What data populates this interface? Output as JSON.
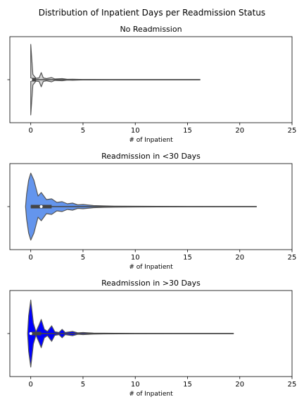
{
  "suptitle": "Distribution of Inpatient Days per Readmission Status",
  "chart_data": [
    {
      "type": "violin",
      "title": "No Readmission",
      "xlabel": "# of Inpatient",
      "ylabel": "",
      "xlim": [
        -2,
        25
      ],
      "xticks": [
        "0",
        "5",
        "10",
        "15",
        "20",
        "25"
      ],
      "fill_color": "#d3d3d3",
      "range": [
        0,
        16.2
      ],
      "median": 0,
      "iqr": [
        0,
        0.5
      ],
      "density": [
        [
          0,
          1.0
        ],
        [
          0.2,
          0.15
        ],
        [
          0.5,
          0.04
        ],
        [
          0.8,
          0.05
        ],
        [
          1,
          0.2
        ],
        [
          1.2,
          0.05
        ],
        [
          1.5,
          0.03
        ],
        [
          2,
          0.06
        ],
        [
          2.3,
          0.02
        ],
        [
          3,
          0.03
        ],
        [
          3.5,
          0.01
        ],
        [
          4,
          0.015
        ],
        [
          5,
          0.006
        ],
        [
          8,
          0.004
        ],
        [
          16.2,
          0.002
        ]
      ]
    },
    {
      "type": "violin",
      "title": "Readmission in <30 Days",
      "xlabel": "# of Inpatient",
      "ylabel": "",
      "xlim": [
        -2,
        25
      ],
      "xticks": [
        "0",
        "5",
        "10",
        "15",
        "20",
        "25"
      ],
      "fill_color": "#6495ed",
      "range": [
        0,
        21.6
      ],
      "median": 1,
      "iqr": [
        0,
        2
      ],
      "density": [
        [
          -0.5,
          0.0
        ],
        [
          -0.4,
          0.35
        ],
        [
          -0.2,
          0.75
        ],
        [
          0,
          0.95
        ],
        [
          0.3,
          0.75
        ],
        [
          0.7,
          0.3
        ],
        [
          1,
          0.4
        ],
        [
          1.5,
          0.2
        ],
        [
          2,
          0.22
        ],
        [
          2.5,
          0.12
        ],
        [
          3,
          0.14
        ],
        [
          3.5,
          0.08
        ],
        [
          4,
          0.1
        ],
        [
          4.5,
          0.05
        ],
        [
          5,
          0.06
        ],
        [
          6,
          0.03
        ],
        [
          7,
          0.02
        ],
        [
          8,
          0.015
        ],
        [
          10,
          0.01
        ],
        [
          15,
          0.005
        ],
        [
          21.6,
          0.002
        ]
      ]
    },
    {
      "type": "violin",
      "title": "Readmission in >30 Days",
      "xlabel": "# of Inpatient",
      "ylabel": "",
      "xlim": [
        -2,
        25
      ],
      "xticks": [
        "0",
        "5",
        "10",
        "15",
        "20",
        "25"
      ],
      "fill_color": "#0000ff",
      "range": [
        0,
        19.4
      ],
      "median": 0,
      "iqr": [
        0,
        1
      ],
      "density": [
        [
          -0.3,
          0.0
        ],
        [
          -0.2,
          0.5
        ],
        [
          0,
          0.95
        ],
        [
          0.25,
          0.3
        ],
        [
          0.5,
          0.05
        ],
        [
          0.8,
          0.25
        ],
        [
          1,
          0.4
        ],
        [
          1.3,
          0.12
        ],
        [
          1.6,
          0.06
        ],
        [
          2,
          0.22
        ],
        [
          2.3,
          0.05
        ],
        [
          2.7,
          0.03
        ],
        [
          3,
          0.12
        ],
        [
          3.3,
          0.03
        ],
        [
          4,
          0.06
        ],
        [
          4.5,
          0.02
        ],
        [
          5,
          0.03
        ],
        [
          6,
          0.015
        ],
        [
          7,
          0.01
        ],
        [
          10,
          0.005
        ],
        [
          19.4,
          0.002
        ]
      ]
    }
  ]
}
